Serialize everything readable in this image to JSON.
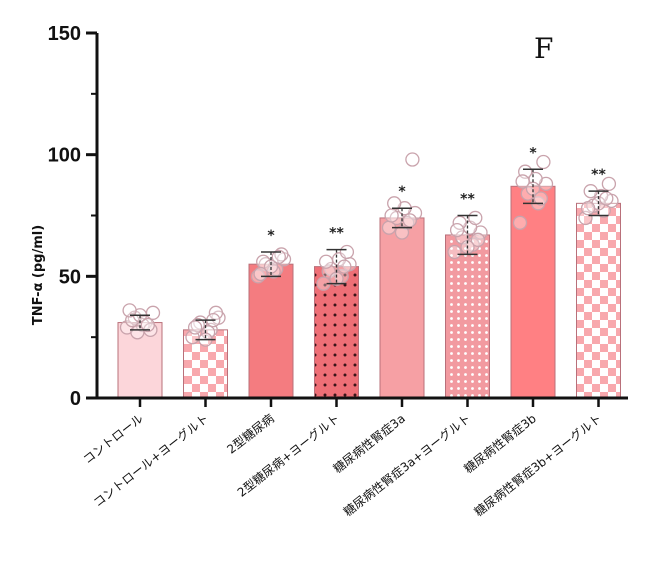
{
  "chart_data": {
    "type": "bar",
    "panel_label": "F",
    "ylabel": "TNF-α (pg/ml)",
    "ylim": [
      0,
      150
    ],
    "yticks": [
      "0",
      "50",
      "100",
      "150"
    ],
    "grid": false,
    "categories": [
      "コントロール",
      "コントロール+ヨーグルト",
      "2型糖尿病",
      "2型糖尿病+ヨーグルト",
      "糖尿病性腎症3a",
      "糖尿病性腎症3a+ヨーグルト",
      "糖尿病性腎症3b",
      "糖尿病性腎症3b+ヨーグルト"
    ],
    "values": [
      31,
      28,
      55,
      54,
      74,
      67,
      87,
      80
    ],
    "errors": [
      3,
      4,
      5,
      7,
      4,
      8,
      7,
      5
    ],
    "significance": [
      "",
      "",
      "*",
      "**",
      "*",
      "**",
      "*",
      "**"
    ],
    "fills": [
      "solid-light",
      "checker",
      "solid",
      "dots",
      "solid-medium",
      "dots-dense",
      "solid",
      "checker"
    ],
    "colors": {
      "control": "#fcd6da",
      "t2dm": "#f47c80",
      "dkd3a": "#f6a0a4",
      "dkd3b": "#ff8083",
      "pattern_light": "#fde4e7",
      "axis": "#111111",
      "point": "#c9a3ac"
    },
    "points": [
      [
        29,
        31,
        33,
        35,
        30,
        32,
        28,
        34,
        36,
        30,
        27
      ],
      [
        25,
        28,
        31,
        33,
        27,
        30,
        35,
        24,
        29,
        32
      ],
      [
        50,
        53,
        55,
        57,
        52,
        56,
        59,
        54,
        51,
        58
      ],
      [
        47,
        50,
        53,
        55,
        57,
        52,
        60,
        49,
        56,
        54
      ],
      [
        70,
        72,
        74,
        76,
        78,
        80,
        98,
        68,
        75,
        73
      ],
      [
        60,
        63,
        66,
        68,
        70,
        72,
        65,
        62,
        69,
        74
      ],
      [
        72,
        80,
        84,
        88,
        90,
        93,
        97,
        86,
        89,
        82
      ],
      [
        74,
        77,
        79,
        81,
        83,
        85,
        88,
        80,
        78,
        82
      ]
    ]
  }
}
